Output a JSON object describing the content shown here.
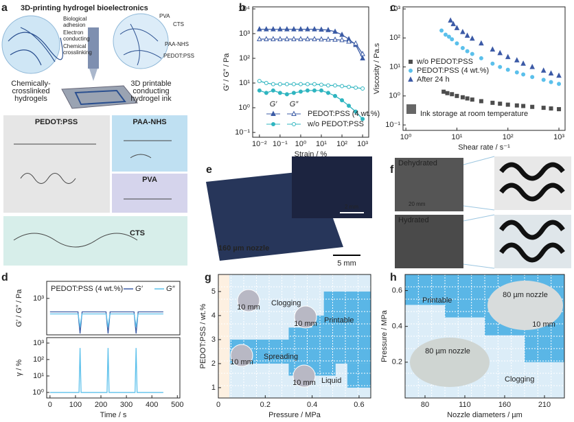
{
  "panel_labels": [
    "a",
    "b",
    "c",
    "d",
    "e",
    "f",
    "g",
    "h"
  ],
  "schematic": {
    "title": "3D-printing hydrogel bioelectronics",
    "left_callouts": [
      [
        "Biological",
        "adhesion"
      ],
      [
        "Electron",
        "conducting"
      ],
      [
        "Chemical",
        "crosslinking"
      ]
    ],
    "left_caption": [
      "Chemically-",
      "crosslinked",
      "hydrogels"
    ],
    "right_callouts": [
      "PVA",
      "CTS",
      "PAA-NHS",
      "PEDOT:PSS"
    ],
    "right_caption": [
      "3D printable",
      "conducting",
      "hydrogel ink"
    ],
    "structures": [
      "PEDOT:PSS",
      "PAA-NHS",
      "PVA",
      "CTS"
    ]
  },
  "photos": {
    "e": {
      "nozzle": "160 µm nozzle",
      "scale": "5 mm",
      "inset_scale": "2 mm"
    },
    "f": {
      "states": [
        "Dehydrated",
        "Hydrated"
      ],
      "scale": "20 mm"
    }
  },
  "chart_data": [
    {
      "type": "scatter",
      "xscale": "log",
      "yscale": "log",
      "xlim": [
        0.0047,
        1980
      ],
      "ylim": [
        0.064,
        12100
      ],
      "xticks": [
        {
          "value": 0.01,
          "label": "10⁻²"
        },
        {
          "value": 0.1,
          "label": "10⁻¹"
        },
        {
          "value": 1,
          "label": "10⁰"
        },
        {
          "value": 10,
          "label": "10¹"
        },
        {
          "value": 100,
          "label": "10²"
        },
        {
          "value": 1000,
          "label": "10³"
        }
      ],
      "yticks": [
        {
          "value": 0.1,
          "label": "10⁻¹"
        },
        {
          "value": 1,
          "label": "10⁰"
        },
        {
          "value": 10,
          "label": "10¹"
        },
        {
          "value": 100,
          "label": "10²"
        },
        {
          "value": 1000,
          "label": "10³"
        },
        {
          "value": 10000,
          "label": "10⁴"
        }
      ],
      "xlabel": "Strain / %",
      "ylabel": "G′ / G″ / Pa",
      "connect": true,
      "legend_columns": [
        "G′",
        "G″"
      ],
      "x": [
        0.01,
        0.0215,
        0.0464,
        0.1,
        0.215,
        0.464,
        1,
        2.15,
        4.64,
        10,
        21.5,
        46.4,
        100,
        215,
        464,
        1000
      ],
      "series": [
        {
          "name": "PEDOT:PSS (4 wt.%)",
          "color": "#3b5ba5",
          "marker": "triangle",
          "storage": [
            1500,
            1500,
            1500,
            1500,
            1500,
            1500,
            1500,
            1500,
            1500,
            1450,
            1400,
            1200,
            900,
            600,
            350,
            100
          ],
          "loss": [
            600,
            600,
            600,
            600,
            600,
            600,
            600,
            600,
            600,
            590,
            580,
            570,
            550,
            480,
            400,
            150
          ]
        },
        {
          "name": "w/o PEDOT:PSS",
          "color": "#2fb5c0",
          "marker": "circle",
          "storage": [
            5,
            4,
            5,
            4,
            3.5,
            4,
            4.5,
            5,
            5,
            5,
            4,
            3,
            2,
            1.2,
            0.7,
            0.35
          ],
          "loss": [
            12,
            10,
            9,
            9,
            9,
            9,
            9,
            9,
            9,
            8.5,
            8,
            8,
            7.5,
            7,
            6.5,
            6
          ]
        }
      ]
    },
    {
      "type": "scatter",
      "xscale": "log",
      "yscale": "log",
      "xlim": [
        0.88,
        1320
      ],
      "ylim": [
        0.065,
        1180
      ],
      "xticks": [
        {
          "value": 1,
          "label": "10⁰"
        },
        {
          "value": 10,
          "label": "10¹"
        },
        {
          "value": 100,
          "label": "10²"
        },
        {
          "value": 1000,
          "label": "10³"
        }
      ],
      "yticks": [
        {
          "value": 0.1,
          "label": "10⁻¹"
        },
        {
          "value": 1,
          "label": "10⁰"
        },
        {
          "value": 10,
          "label": "10¹"
        },
        {
          "value": 100,
          "label": "10²"
        },
        {
          "value": 1000,
          "label": "10³"
        }
      ],
      "xlabel": "Shear rate / s⁻¹",
      "ylabel": "Viscosity / Pa.s",
      "annotation": "Ink storage at room temperature",
      "series": [
        {
          "name": "w/o PEDOT:PSS",
          "color": "#4d4d4d",
          "marker": "square",
          "x": [
            5.5,
            6.5,
            8,
            10,
            13,
            16,
            20,
            30,
            50,
            70,
            100,
            150,
            200,
            300,
            500,
            700,
            1000
          ],
          "values": [
            1.4,
            1.25,
            1.15,
            1.0,
            0.9,
            0.82,
            0.75,
            0.66,
            0.58,
            0.54,
            0.5,
            0.47,
            0.45,
            0.42,
            0.39,
            0.37,
            0.35
          ]
        },
        {
          "name": "PEDOT:PSS (4 wt.%)",
          "color": "#5bc0eb",
          "marker": "circle",
          "x": [
            5,
            6,
            7,
            8,
            10,
            13,
            16,
            20,
            30,
            50,
            70,
            100,
            150,
            200,
            300,
            500,
            700,
            1000
          ],
          "values": [
            180,
            130,
            110,
            90,
            65,
            45,
            35,
            28,
            20,
            13,
            10,
            8,
            6.5,
            5.5,
            4.5,
            3.6,
            3.0,
            2.6
          ]
        },
        {
          "name": "After 24 h",
          "color": "#3c5aa6",
          "marker": "triangle",
          "x": [
            7.5,
            8.5,
            10,
            13,
            16,
            20,
            30,
            50,
            70,
            100,
            150,
            200,
            300,
            500,
            700,
            1000
          ],
          "values": [
            400,
            300,
            220,
            160,
            120,
            95,
            65,
            40,
            30,
            22,
            17,
            13,
            10,
            7.5,
            6,
            5
          ]
        }
      ]
    },
    {
      "type": "line",
      "xscale": "linear",
      "yscale": "log",
      "xlim": [
        -13,
        510
      ],
      "ylim": [
        130,
        2600
      ],
      "yticks": [
        {
          "value": 1000,
          "label": "10³"
        }
      ],
      "ylabel": "G′ / G″ / Pa",
      "legend_title": "PEDOT:PSS (4 wt.%)",
      "x": [
        0,
        110,
        114,
        118,
        122,
        126,
        220,
        224,
        228,
        232,
        236,
        330,
        334,
        338,
        342,
        346,
        445
      ],
      "series": [
        {
          "name": "G′",
          "color": "#3b5ba5",
          "values": [
            470,
            470,
            250,
            140,
            250,
            470,
            470,
            250,
            140,
            250,
            470,
            470,
            250,
            140,
            250,
            470,
            470
          ]
        },
        {
          "name": "G″",
          "color": "#5bc0eb",
          "values": [
            420,
            420,
            300,
            200,
            300,
            420,
            420,
            300,
            200,
            300,
            420,
            420,
            300,
            200,
            300,
            420,
            420
          ]
        }
      ]
    },
    {
      "type": "line",
      "xscale": "linear",
      "yscale": "log",
      "xlim": [
        -13,
        510
      ],
      "ylim": [
        0.46,
        2150
      ],
      "xticks": [
        0,
        100,
        200,
        300,
        400,
        500
      ],
      "yticks": [
        {
          "value": 1,
          "label": "10⁰"
        },
        {
          "value": 10,
          "label": "10¹"
        },
        {
          "value": 100,
          "label": "10²"
        },
        {
          "value": 1000,
          "label": "10³"
        }
      ],
      "xlabel": "Time / s",
      "ylabel": "γ / %",
      "x": [
        0,
        110,
        114,
        118,
        122,
        126,
        220,
        224,
        228,
        232,
        236,
        330,
        334,
        338,
        342,
        346,
        445
      ],
      "series": [
        {
          "color": "#5bc0eb",
          "values": [
            1,
            1,
            1,
            500,
            1,
            1,
            1,
            1,
            500,
            1,
            1,
            1,
            1,
            500,
            1,
            1,
            1
          ]
        }
      ]
    },
    {
      "type": "heatmap",
      "xscale": "linear",
      "yscale": "linear",
      "xlim": [
        0,
        0.65
      ],
      "ylim": [
        0.57,
        5.71
      ],
      "xticks": [
        0,
        0.2,
        0.4,
        0.6
      ],
      "yticks": [
        1,
        2,
        3,
        4,
        5
      ],
      "xlabel": "Pressure / MPa",
      "ylabel": "PEDOT:PSS / wt.%",
      "regions": [
        "Clogging",
        "Printable",
        "Spreading",
        "Liquid"
      ],
      "inset_scale": "10 mm",
      "printable_cells": [
        [
          0.05,
          0.35,
          2.0,
          3.0
        ],
        [
          0.3,
          0.5,
          1.5,
          3.5
        ],
        [
          0.45,
          0.65,
          2.0,
          5.0
        ],
        [
          0.55,
          0.65,
          1.0,
          2.0
        ],
        [
          0.4,
          0.55,
          3.5,
          4.0
        ]
      ]
    },
    {
      "type": "heatmap",
      "xscale": "linear",
      "yscale": "linear",
      "ylim": [
        0,
        0.69
      ],
      "categories": [
        80,
        110,
        160,
        210
      ],
      "yticks": [
        0.2,
        0.4,
        0.6
      ],
      "xlabel": "Nozzle diameters / µm",
      "ylabel": "Pressure / MPa",
      "regions": [
        "Printable",
        "Clogging"
      ],
      "inset_label": "80 µm nozzle",
      "inset_scale": "10 mm",
      "printable_min_pressure": [
        0.52,
        0.45,
        0.35,
        0.2
      ]
    }
  ]
}
